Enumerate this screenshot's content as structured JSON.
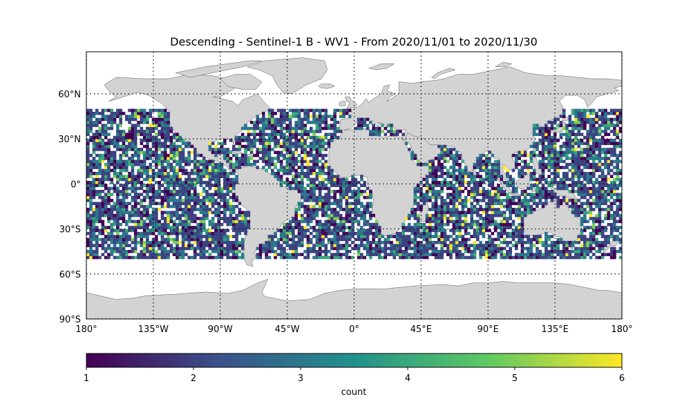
{
  "title": "Descending - Sentinel-1 B - WV1 - From 2020/11/01 to 2020/11/30",
  "lat_ticks": [
    "90°S",
    "60°S",
    "30°S",
    "0°",
    "30°N",
    "60°N"
  ],
  "lon_ticks": [
    "180°",
    "135°W",
    "90°W",
    "45°W",
    "0°",
    "45°E",
    "90°E",
    "135°E",
    "180°"
  ],
  "colorbar": {
    "label": "count",
    "ticks": [
      "1",
      "2",
      "3",
      "4",
      "5",
      "6"
    ],
    "range": [
      1,
      6
    ],
    "colormap": "viridis"
  },
  "colors": {
    "land": "#d3d3d3",
    "coastline": "#555555",
    "grid": "#000000",
    "viridis_stops": [
      "#440154",
      "#3b528b",
      "#21918c",
      "#5ec962",
      "#fde725"
    ]
  },
  "chart_data": {
    "type": "heatmap",
    "title": "Descending - Sentinel-1 B - WV1 - From 2020/11/01 to 2020/11/30",
    "projection": "PlateCarree",
    "xlim": [
      -180,
      180
    ],
    "ylim": [
      -90,
      90
    ],
    "value_range": [
      1,
      6
    ],
    "colorbar_label": "count",
    "grid": true,
    "cell_size_deg": 2,
    "data_lat_range": [
      -50,
      50
    ],
    "description_of_coverage": "Ocean-only swaths between 50°S and 50°N"
  }
}
